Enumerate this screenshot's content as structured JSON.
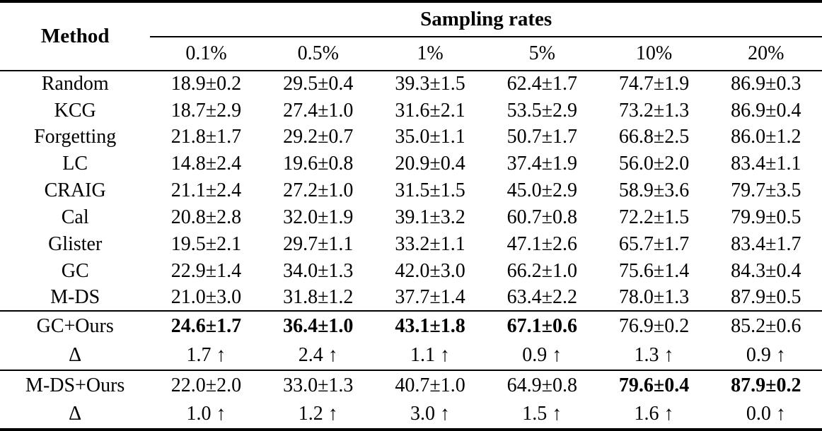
{
  "header": {
    "method": "Method",
    "group": "Sampling rates",
    "rates": [
      "0.1%",
      "0.5%",
      "1%",
      "5%",
      "10%",
      "20%"
    ]
  },
  "baselines": [
    {
      "method": "Random",
      "cells": [
        "18.9±0.2",
        "29.5±0.4",
        "39.3±1.5",
        "62.4±1.7",
        "74.7±1.9",
        "86.9±0.3"
      ]
    },
    {
      "method": "KCG",
      "cells": [
        "18.7±2.9",
        "27.4±1.0",
        "31.6±2.1",
        "53.5±2.9",
        "73.2±1.3",
        "86.9±0.4"
      ]
    },
    {
      "method": "Forgetting",
      "cells": [
        "21.8±1.7",
        "29.2±0.7",
        "35.0±1.1",
        "50.7±1.7",
        "66.8±2.5",
        "86.0±1.2"
      ]
    },
    {
      "method": "LC",
      "cells": [
        "14.8±2.4",
        "19.6±0.8",
        "20.9±0.4",
        "37.4±1.9",
        "56.0±2.0",
        "83.4±1.1"
      ]
    },
    {
      "method": "CRAIG",
      "cells": [
        "21.1±2.4",
        "27.2±1.0",
        "31.5±1.5",
        "45.0±2.9",
        "58.9±3.6",
        "79.7±3.5"
      ]
    },
    {
      "method": "Cal",
      "cells": [
        "20.8±2.8",
        "32.0±1.9",
        "39.1±3.2",
        "60.7±0.8",
        "72.2±1.5",
        "79.9±0.5"
      ]
    },
    {
      "method": "Glister",
      "cells": [
        "19.5±2.1",
        "29.7±1.1",
        "33.2±1.1",
        "47.1±2.6",
        "65.7±1.7",
        "83.4±1.7"
      ]
    },
    {
      "method": "GC",
      "cells": [
        "22.9±1.4",
        "34.0±1.3",
        "42.0±3.0",
        "66.2±1.0",
        "75.6±1.4",
        "84.3±0.4"
      ]
    },
    {
      "method": "M-DS",
      "cells": [
        "21.0±3.0",
        "31.8±1.2",
        "37.7±1.4",
        "63.4±2.2",
        "78.0±1.3",
        "87.9±0.5"
      ]
    }
  ],
  "gc_ours": {
    "row": {
      "method": "GC+Ours",
      "cells": [
        "24.6±1.7",
        "36.4±1.0",
        "43.1±1.8",
        "67.1±0.6",
        "76.9±0.2",
        "85.2±0.6"
      ]
    },
    "delta": {
      "method": "Δ",
      "cells": [
        "1.7 ↑",
        "2.4 ↑",
        "1.1 ↑",
        "0.9 ↑",
        "1.3 ↑",
        "0.9 ↑"
      ]
    }
  },
  "mds_ours": {
    "row": {
      "method": "M-DS+Ours",
      "cells": [
        "22.0±2.0",
        "33.0±1.3",
        "40.7±1.0",
        "64.9±0.8",
        "79.6±0.4",
        "87.9±0.2"
      ]
    },
    "delta": {
      "method": "Δ",
      "cells": [
        "1.0 ↑",
        "1.2 ↑",
        "3.0 ↑",
        "1.5 ↑",
        "1.6 ↑",
        "0.0 ↑"
      ]
    }
  }
}
